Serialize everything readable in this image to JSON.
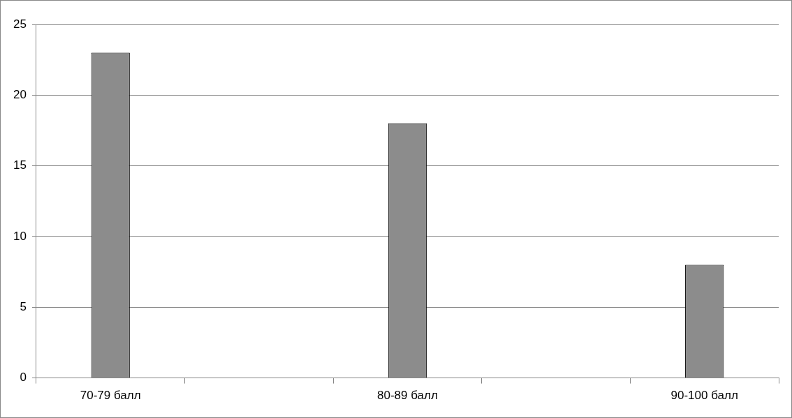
{
  "chart_data": {
    "type": "bar",
    "categories": [
      "70-79 балл",
      null,
      "80-89 балл",
      null,
      "90-100 балл"
    ],
    "values": [
      23,
      null,
      18,
      null,
      8
    ],
    "color": "#8c8c8c",
    "ylim": [
      0,
      25
    ],
    "yticks": [
      0,
      5,
      10,
      15,
      20,
      25
    ],
    "grid": "y",
    "legend": false
  }
}
